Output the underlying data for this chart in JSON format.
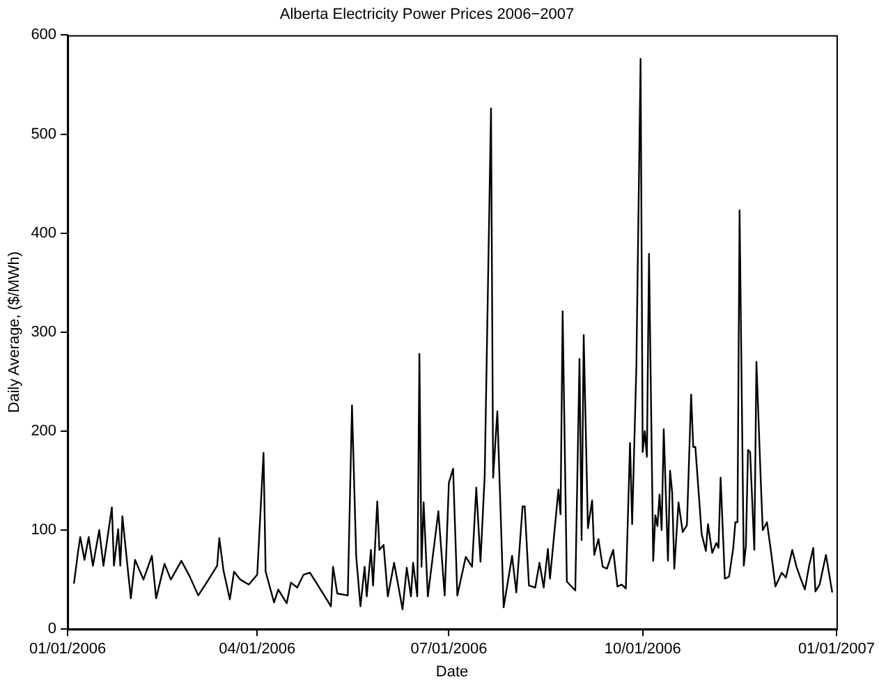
{
  "chart_data": {
    "type": "line",
    "title": "Alberta Electricity Power Prices 2006−2007",
    "xlabel": "Date",
    "ylabel": "Daily Average, ($/MWh)",
    "xlim": [
      "2006-01-01",
      "2007-01-01"
    ],
    "xticks": [
      {
        "value": "2006-01-01",
        "label": "01/01/2006"
      },
      {
        "value": "2006-04-01",
        "label": "04/01/2006"
      },
      {
        "value": "2006-07-01",
        "label": "07/01/2006"
      },
      {
        "value": "2006-10-01",
        "label": "10/01/2006"
      },
      {
        "value": "2007-01-01",
        "label": "01/01/2007"
      }
    ],
    "ylim": [
      0,
      600
    ],
    "yticks": [
      0,
      100,
      200,
      300,
      400,
      500,
      600
    ],
    "grid": false,
    "legend": false,
    "marker": "none",
    "line_style": "solid",
    "series": [
      {
        "color": "#000000",
        "x": [
          "2006-01-04",
          "2006-01-06",
          "2006-01-07",
          "2006-01-09",
          "2006-01-11",
          "2006-01-13",
          "2006-01-16",
          "2006-01-18",
          "2006-01-22",
          "2006-01-23",
          "2006-01-25",
          "2006-01-26",
          "2006-01-27",
          "2006-01-29",
          "2006-01-31",
          "2006-02-02",
          "2006-02-06",
          "2006-02-10",
          "2006-02-12",
          "2006-02-16",
          "2006-02-19",
          "2006-02-24",
          "2006-02-28",
          "2006-03-04",
          "2006-03-08",
          "2006-03-13",
          "2006-03-14",
          "2006-03-16",
          "2006-03-19",
          "2006-03-21",
          "2006-03-24",
          "2006-03-28",
          "2006-04-01",
          "2006-04-04",
          "2006-04-05",
          "2006-04-09",
          "2006-04-11",
          "2006-04-15",
          "2006-04-17",
          "2006-04-20",
          "2006-04-23",
          "2006-04-26",
          "2006-04-29",
          "2006-05-04",
          "2006-05-06",
          "2006-05-07",
          "2006-05-09",
          "2006-05-14",
          "2006-05-16",
          "2006-05-18",
          "2006-05-20",
          "2006-05-22",
          "2006-05-23",
          "2006-05-25",
          "2006-05-26",
          "2006-05-28",
          "2006-05-29",
          "2006-05-31",
          "2006-06-02",
          "2006-06-05",
          "2006-06-09",
          "2006-06-11",
          "2006-06-13",
          "2006-06-14",
          "2006-06-16",
          "2006-06-17",
          "2006-06-18",
          "2006-06-19",
          "2006-06-21",
          "2006-06-26",
          "2006-06-29",
          "2006-07-01",
          "2006-07-03",
          "2006-07-05",
          "2006-07-09",
          "2006-07-12",
          "2006-07-14",
          "2006-07-16",
          "2006-07-18",
          "2006-07-21",
          "2006-07-22",
          "2006-07-24",
          "2006-07-27",
          "2006-07-31",
          "2006-08-02",
          "2006-08-05",
          "2006-08-06",
          "2006-08-08",
          "2006-08-11",
          "2006-08-13",
          "2006-08-15",
          "2006-08-17",
          "2006-08-18",
          "2006-08-22",
          "2006-08-23",
          "2006-08-24",
          "2006-08-26",
          "2006-08-30",
          "2006-09-01",
          "2006-09-02",
          "2006-09-03",
          "2006-09-05",
          "2006-09-07",
          "2006-09-08",
          "2006-09-10",
          "2006-09-12",
          "2006-09-14",
          "2006-09-17",
          "2006-09-19",
          "2006-09-21",
          "2006-09-23",
          "2006-09-25",
          "2006-09-26",
          "2006-09-28",
          "2006-09-30",
          "2006-10-01",
          "2006-10-02",
          "2006-10-03",
          "2006-10-04",
          "2006-10-06",
          "2006-10-07",
          "2006-10-08",
          "2006-10-09",
          "2006-10-10",
          "2006-10-11",
          "2006-10-13",
          "2006-10-14",
          "2006-10-15",
          "2006-10-16",
          "2006-10-18",
          "2006-10-20",
          "2006-10-22",
          "2006-10-24",
          "2006-10-25",
          "2006-10-26",
          "2006-10-29",
          "2006-10-31",
          "2006-11-01",
          "2006-11-03",
          "2006-11-05",
          "2006-11-06",
          "2006-11-07",
          "2006-11-09",
          "2006-11-11",
          "2006-11-13",
          "2006-11-14",
          "2006-11-15",
          "2006-11-16",
          "2006-11-18",
          "2006-11-19",
          "2006-11-20",
          "2006-11-21",
          "2006-11-23",
          "2006-11-24",
          "2006-11-26",
          "2006-11-27",
          "2006-11-29",
          "2006-12-01",
          "2006-12-03",
          "2006-12-06",
          "2006-12-08",
          "2006-12-11",
          "2006-12-13",
          "2006-12-15",
          "2006-12-17",
          "2006-12-19",
          "2006-12-21",
          "2006-12-22",
          "2006-12-24",
          "2006-12-27",
          "2006-12-30"
        ],
        "values": [
          46,
          79,
          93,
          70,
          93,
          64,
          100,
          64,
          123,
          64,
          101,
          64,
          114,
          72,
          31,
          70,
          50,
          74,
          31,
          66,
          50,
          69,
          53,
          34,
          47,
          64,
          92,
          59,
          30,
          58,
          50,
          45,
          55,
          178,
          58,
          27,
          40,
          26,
          47,
          42,
          55,
          57,
          47,
          30,
          23,
          63,
          36,
          34,
          226,
          73,
          23,
          63,
          33,
          80,
          44,
          129,
          80,
          85,
          33,
          67,
          20,
          62,
          33,
          67,
          33,
          278,
          63,
          128,
          33,
          119,
          34,
          148,
          162,
          34,
          73,
          63,
          143,
          68,
          155,
          526,
          153,
          220,
          22,
          74,
          37,
          124,
          124,
          44,
          42,
          67,
          42,
          81,
          51,
          141,
          116,
          321,
          48,
          39,
          273,
          90,
          297,
          102,
          130,
          75,
          91,
          63,
          61,
          80,
          43,
          45,
          41,
          188,
          106,
          265,
          576,
          179,
          200,
          174,
          379,
          69,
          115,
          104,
          136,
          100,
          202,
          69,
          160,
          138,
          61,
          128,
          98,
          105,
          237,
          184,
          184,
          96,
          79,
          106,
          77,
          87,
          82,
          153,
          51,
          53,
          82,
          108,
          108,
          423,
          64,
          84,
          181,
          179,
          80,
          270,
          153,
          100,
          108,
          77,
          43,
          57,
          52,
          80,
          63,
          51,
          40,
          64,
          82,
          38,
          45,
          75,
          37
        ]
      }
    ]
  }
}
